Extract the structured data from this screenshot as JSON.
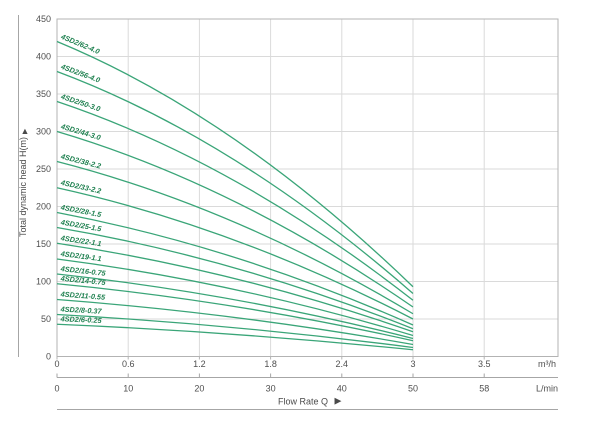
{
  "chart_data": {
    "type": "line",
    "ylabel": "Total dynamic head H(m)",
    "xlabel": "Flow Rate Q",
    "y_axis": {
      "ticks": [
        0,
        50,
        100,
        150,
        200,
        250,
        300,
        350,
        400,
        450
      ],
      "ylim": [
        0,
        450
      ]
    },
    "x_axis_primary": {
      "unit": "m³/h",
      "tick_labels": [
        "0",
        "0.6",
        "1.2",
        "1.8",
        "2.4",
        "3",
        "3.5"
      ]
    },
    "x_axis_secondary": {
      "unit": "L/min",
      "tick_labels": [
        "0",
        "10",
        "20",
        "30",
        "40",
        "50",
        "58"
      ]
    },
    "grid": true,
    "x_range_of_curves_m3h": [
      0,
      3
    ],
    "series": [
      {
        "name": "4SD2/62-4.0",
        "head_m_at_q0": 420,
        "head_m_at_q3": 93
      },
      {
        "name": "4SD2/56-4.0",
        "head_m_at_q0": 380,
        "head_m_at_q3": 84
      },
      {
        "name": "4SD2/50-3.0",
        "head_m_at_q0": 340,
        "head_m_at_q3": 75
      },
      {
        "name": "4SD2/44-3.0",
        "head_m_at_q0": 300,
        "head_m_at_q3": 66
      },
      {
        "name": "4SD2/38-2.2",
        "head_m_at_q0": 260,
        "head_m_at_q3": 57
      },
      {
        "name": "4SD2/33-2.2",
        "head_m_at_q0": 225,
        "head_m_at_q3": 50
      },
      {
        "name": "4SD2/28-1.5",
        "head_m_at_q0": 192,
        "head_m_at_q3": 42
      },
      {
        "name": "4SD2/25-1.5",
        "head_m_at_q0": 172,
        "head_m_at_q3": 37
      },
      {
        "name": "4SD2/22-1.1",
        "head_m_at_q0": 151,
        "head_m_at_q3": 33
      },
      {
        "name": "4SD2/19-1.1",
        "head_m_at_q0": 130,
        "head_m_at_q3": 28
      },
      {
        "name": "4SD2/16-0.75",
        "head_m_at_q0": 110,
        "head_m_at_q3": 24
      },
      {
        "name": "4SD2/14-0.75",
        "head_m_at_q0": 97,
        "head_m_at_q3": 21
      },
      {
        "name": "4SD2/11-0.55",
        "head_m_at_q0": 76,
        "head_m_at_q3": 16
      },
      {
        "name": "4SD2/8-0.37",
        "head_m_at_q0": 56,
        "head_m_at_q3": 12
      },
      {
        "name": "4SD2/6-0.25",
        "head_m_at_q0": 43,
        "head_m_at_q3": 9
      }
    ],
    "colors": {
      "curve": "#3aa578",
      "curve_label": "#1f8150",
      "grid": "#dadada",
      "border": "#b3b3b3",
      "axis_line": "#a6a6a6",
      "text": "#4f4f4f"
    },
    "legend_position": "none"
  },
  "decor": {
    "y_axis_arrow": "▲",
    "x_axis_arrow": "▶"
  }
}
